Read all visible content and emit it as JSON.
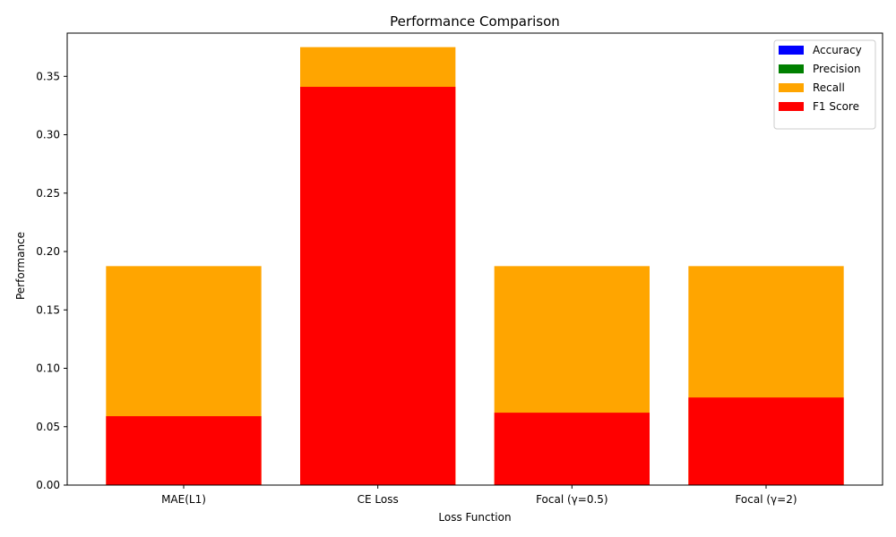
{
  "chart_data": {
    "type": "bar",
    "stacking": "overlay",
    "title": "Performance Comparison",
    "xlabel": "Loss Function",
    "ylabel": "Performance",
    "categories": [
      "MAE(L1)",
      "CE Loss",
      "Focal (γ=0.5)",
      "Focal (γ=2)"
    ],
    "ylim": [
      0,
      0.387
    ],
    "yticks": [
      0.0,
      0.05,
      0.1,
      0.15,
      0.2,
      0.25,
      0.3,
      0.35
    ],
    "ytick_labels": [
      "0.00",
      "0.05",
      "0.10",
      "0.15",
      "0.20",
      "0.25",
      "0.30",
      "0.35"
    ],
    "grid": false,
    "legend_position": "top-right",
    "series": [
      {
        "name": "Accuracy",
        "color": "#0000ff",
        "values": [
          0.0,
          0.0,
          0.0,
          0.0
        ]
      },
      {
        "name": "Precision",
        "color": "#008000",
        "values": [
          0.0,
          0.0,
          0.0,
          0.0
        ]
      },
      {
        "name": "Recall",
        "color": "#ffa500",
        "values": [
          0.1875,
          0.375,
          0.1875,
          0.1875
        ]
      },
      {
        "name": "F1 Score",
        "color": "#ff0000",
        "values": [
          0.059,
          0.341,
          0.062,
          0.075
        ]
      }
    ]
  }
}
